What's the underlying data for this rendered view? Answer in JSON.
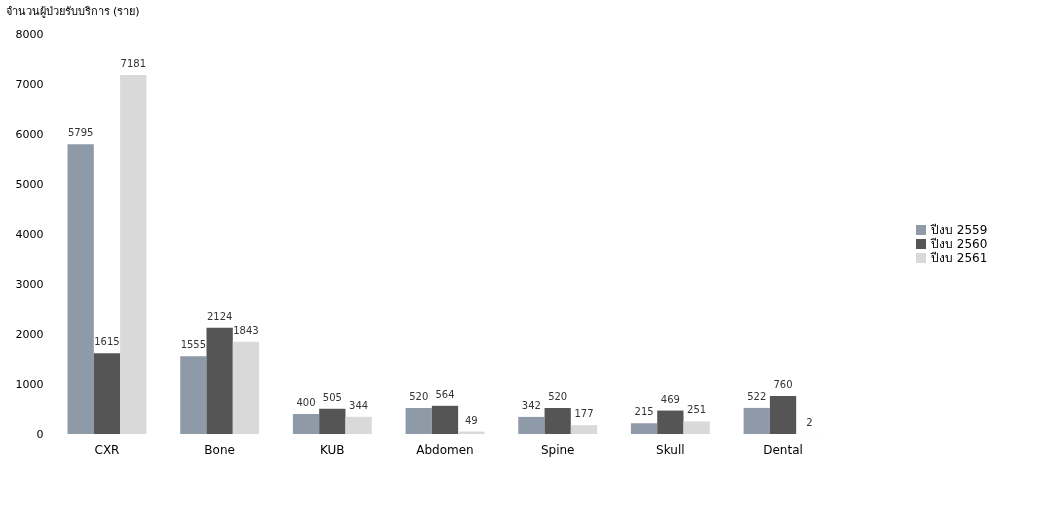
{
  "chart_data": {
    "type": "bar",
    "ylabel": "จำนวนผู้ป่วยรับบริการ (ราย)",
    "categories": [
      "CXR",
      "Bone",
      "KUB",
      "Abdomen",
      "Spine",
      "Skull",
      "Dental"
    ],
    "series": [
      {
        "name": "ปีงบ 2559",
        "color": "#8f9aa8",
        "values": [
          5795,
          1555,
          400,
          520,
          342,
          215,
          522
        ]
      },
      {
        "name": "ปีงบ 2560",
        "color": "#555555",
        "values": [
          1615,
          2124,
          505,
          564,
          520,
          469,
          760
        ]
      },
      {
        "name": "ปีงบ 2561",
        "color": "#d9d9d9",
        "values": [
          7181,
          1843,
          344,
          49,
          177,
          251,
          2
        ]
      }
    ],
    "ylim": [
      0,
      8000
    ],
    "yticks": [
      0,
      1000,
      2000,
      3000,
      4000,
      5000,
      6000,
      7000,
      8000
    ],
    "data_labels": true,
    "grid": false,
    "legend": "right"
  }
}
